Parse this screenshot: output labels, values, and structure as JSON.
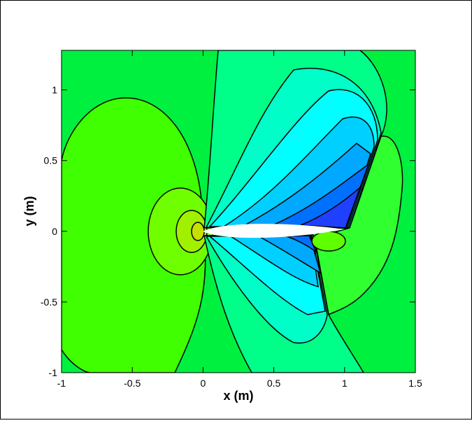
{
  "chart_data": {
    "type": "contour",
    "xlabel": "x (m)",
    "ylabel": "y (m)",
    "xlim": [
      -1,
      1.5
    ],
    "ylim": [
      -1,
      1.28
    ],
    "xticks": [
      -1,
      -0.5,
      0,
      0.5,
      1,
      1.5
    ],
    "yticks": [
      -1,
      -0.5,
      0,
      0.5,
      1
    ]
  }
}
